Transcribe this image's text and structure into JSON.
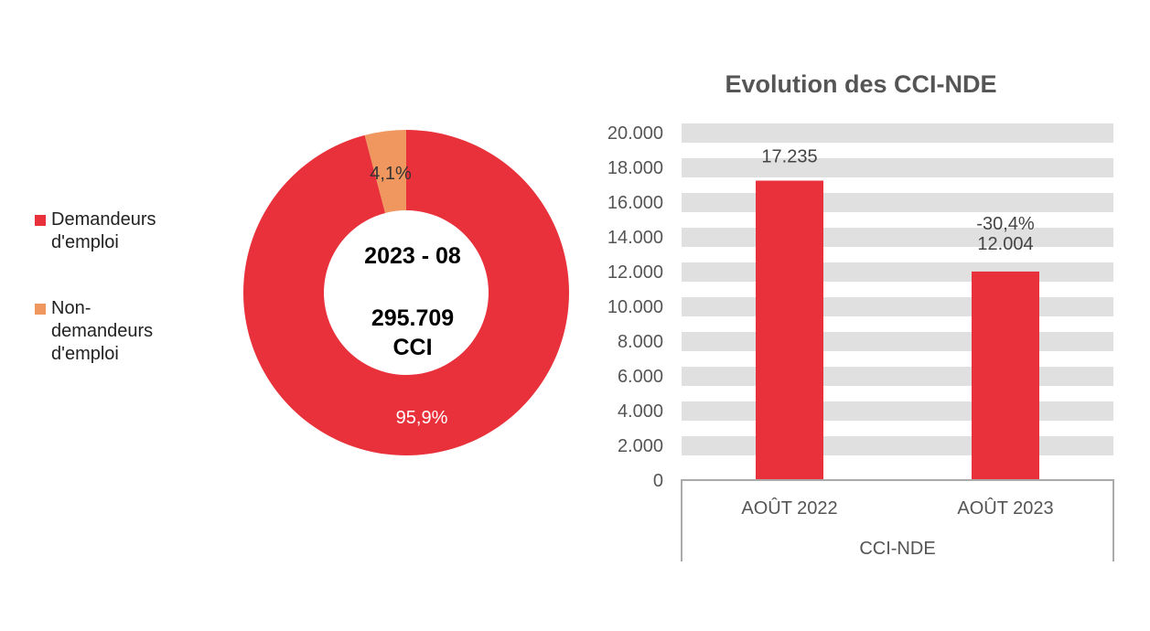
{
  "chart_data": [
    {
      "type": "pie",
      "variant": "donut",
      "center_text": {
        "period": "2023 - 08",
        "total": "295.709",
        "unit": "CCI"
      },
      "slices": [
        {
          "name": "Demandeurs d'emploi",
          "value": 95.9,
          "label": "95,9%",
          "color": "#E8313A"
        },
        {
          "name": "Non-demandeurs d'emploi",
          "value": 4.1,
          "label": "4,1%",
          "color": "#F0975F"
        }
      ],
      "legend": {
        "placement": "left",
        "entries": [
          "Demandeurs d'emploi",
          "Non-demandeurs d'emploi"
        ]
      }
    },
    {
      "type": "bar",
      "title": "Evolution des CCI-NDE",
      "categories": [
        "AOÛT 2022",
        "AOÛT 2023"
      ],
      "group_label": "CCI-NDE",
      "values": [
        17235,
        12004
      ],
      "data_labels": [
        "17.235",
        "12.004"
      ],
      "change_label": "-30,4%",
      "ylim": [
        0,
        20000
      ],
      "yticks": [
        "0",
        "2.000",
        "4.000",
        "6.000",
        "8.000",
        "10.000",
        "12.000",
        "14.000",
        "16.000",
        "18.000",
        "20.000"
      ],
      "grid": "banded",
      "bar_color": "#E8313A",
      "band_color": "#E0E0E0"
    }
  ]
}
